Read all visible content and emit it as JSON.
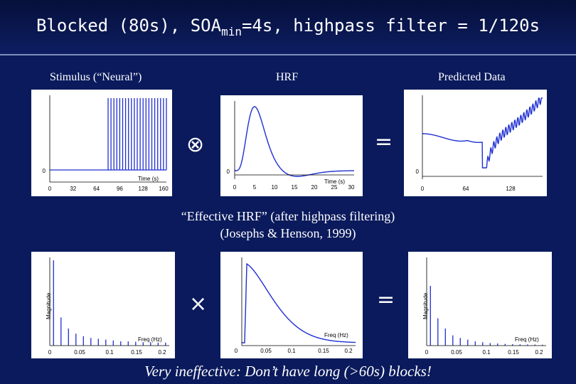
{
  "title": {
    "main": "Blocked (80s), SOA",
    "sub": "min",
    "rest": "=4s, highpass filter = 1/120s"
  },
  "labels": {
    "stimulus": "Stimulus (“Neural”)",
    "hrf": "HRF",
    "predicted": "Predicted Data"
  },
  "operators": {
    "convolve": "⊗",
    "equals": "=",
    "multiply": "×"
  },
  "effective_hrf": {
    "line1": "“Effective HRF” (after highpass filtering)",
    "line2": "(Josephs & Henson, 1999)"
  },
  "footer": "Very ineffective: Don’t have long (>60s) blocks!",
  "colors": {
    "background": "#0a1a5c",
    "curve": "#1f2fd1",
    "text": "#ffffff"
  },
  "chart_data": [
    {
      "type": "line",
      "name": "stimulus",
      "xlabel": "Time (s)",
      "ylabel": "",
      "xticks": [
        "0",
        "32",
        "64",
        "96",
        "128",
        "160"
      ],
      "yticks": [
        "0"
      ],
      "xlim": [
        0,
        160
      ],
      "ylim": [
        0,
        1
      ],
      "events": [
        80,
        84,
        88,
        92,
        96,
        100,
        104,
        108,
        112,
        116,
        120,
        124,
        128,
        132,
        136,
        140,
        144,
        148,
        152,
        156,
        160
      ]
    },
    {
      "type": "line",
      "name": "hrf",
      "xlabel": "Time (s)",
      "ylabel": "",
      "xticks": [
        "0",
        "5",
        "10",
        "15",
        "20",
        "25",
        "30"
      ],
      "yticks": [
        "0"
      ],
      "xlim": [
        0,
        30
      ]
    },
    {
      "type": "line",
      "name": "predicted",
      "xlabel": "",
      "ylabel": "",
      "xticks": [
        "0",
        "64",
        "128"
      ],
      "yticks": [
        "0"
      ],
      "xlim": [
        0,
        160
      ]
    },
    {
      "type": "bar",
      "name": "stimulus-spectrum",
      "xlabel": "Freq (Hz)",
      "ylabel": "Magnitude",
      "xticks": [
        "0",
        "0.05",
        "0.1",
        "0.15",
        "0.2"
      ],
      "yticks": [],
      "x": [
        0.0063,
        0.0188,
        0.0313,
        0.0438,
        0.0563,
        0.0688,
        0.0813,
        0.0938,
        0.1063,
        0.1188,
        0.1313,
        0.1438,
        0.1563,
        0.1688,
        0.1813,
        0.1938
      ],
      "values": [
        1.0,
        0.33,
        0.2,
        0.14,
        0.11,
        0.09,
        0.08,
        0.07,
        0.06,
        0.05,
        0.05,
        0.045,
        0.04,
        0.04,
        0.035,
        0.035
      ]
    },
    {
      "type": "line",
      "name": "effective-hrf-spectrum",
      "xlabel": "Freq (Hz)",
      "ylabel": "",
      "xticks": [
        "0",
        "0.05",
        "0.1",
        "0.15",
        "0.2"
      ],
      "yticks": []
    },
    {
      "type": "bar",
      "name": "predicted-spectrum",
      "xlabel": "Freq (Hz)",
      "ylabel": "Magnitude",
      "xticks": [
        "0",
        "0.05",
        "0.1",
        "0.15",
        "0.2"
      ],
      "yticks": [],
      "x": [
        0.0063,
        0.0188,
        0.0313,
        0.0438,
        0.0563,
        0.0688,
        0.0813,
        0.0938,
        0.1063,
        0.1188,
        0.1313,
        0.1438,
        0.1563,
        0.1688,
        0.1813,
        0.1938
      ],
      "values": [
        0.7,
        0.32,
        0.2,
        0.12,
        0.09,
        0.07,
        0.05,
        0.04,
        0.03,
        0.025,
        0.02,
        0.017,
        0.015,
        0.013,
        0.012,
        0.01
      ]
    }
  ]
}
